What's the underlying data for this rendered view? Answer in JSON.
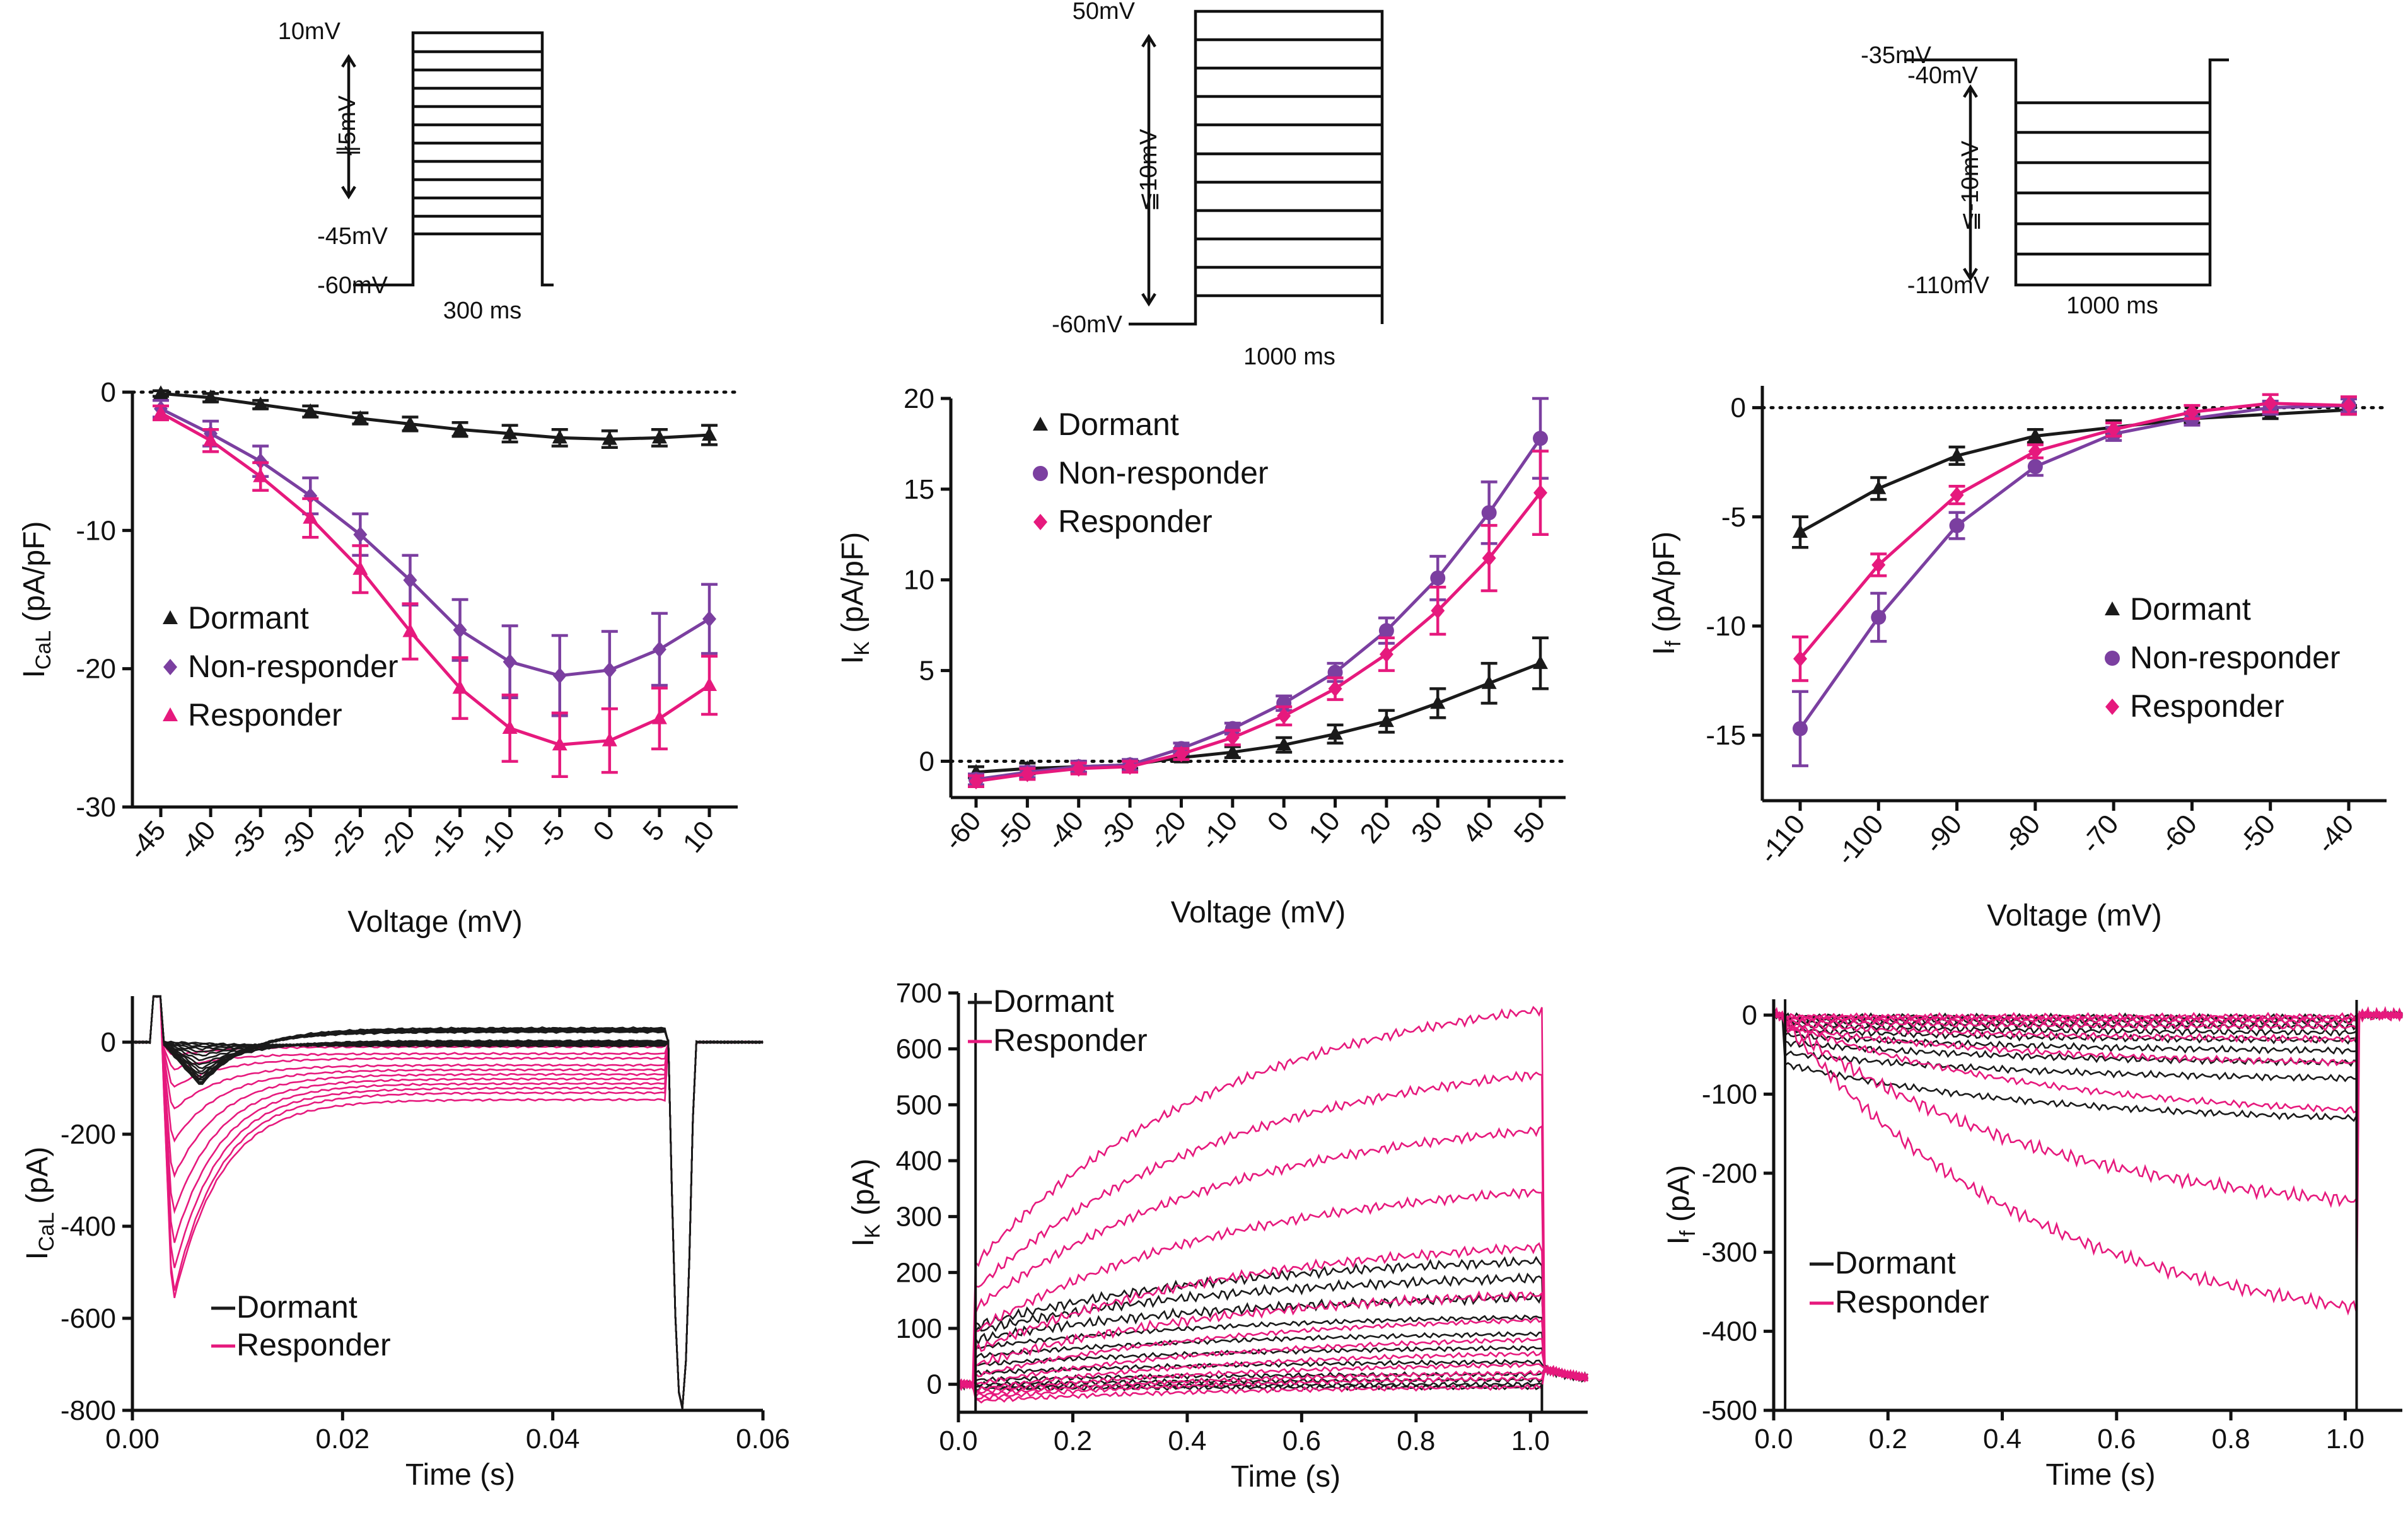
{
  "colors": {
    "dormant": "#1a1a1a",
    "nonresponder": "#7b3fa0",
    "responder": "#e6197d"
  },
  "protocols": [
    {
      "top_label": "10mV",
      "step_label": "∦5mV",
      "mid_label": "-45mV",
      "bottom_label": "-60mV",
      "duration_label": "300 ms"
    },
    {
      "top_label": "50mV",
      "step_label": "≦10mV",
      "bottom_label": "-60mV",
      "duration_label": "1000 ms"
    },
    {
      "hold_label": "-35mV",
      "top_label": "-40mV",
      "step_label": "≦-10mV",
      "bottom_label": "-110mV",
      "duration_label": "1000 ms"
    }
  ],
  "chart_data": [
    {
      "type": "line",
      "id": "iv_cal",
      "title": "",
      "xlabel": "Voltage (mV)",
      "ylabel_main": "I",
      "ylabel_sub": "CaL",
      "ylabel_unit": " (pA/pF)",
      "x": [
        -45,
        -40,
        -35,
        -30,
        -25,
        -20,
        -15,
        -10,
        -5,
        0,
        5,
        10
      ],
      "xticks": [
        "-45",
        "-40",
        "-35",
        "-30",
        "-25",
        "-20",
        "-15",
        "-10",
        "-5",
        "0",
        "5",
        "10"
      ],
      "ylim": [
        -30,
        0
      ],
      "yticks": [
        -30,
        -20,
        -10,
        0
      ],
      "ytick_labels": [
        "-30",
        "-20",
        "-10",
        "0"
      ],
      "legend": [
        "Dormant",
        "Non-responder",
        "Responder"
      ],
      "series": [
        {
          "name": "Dormant",
          "color": "#1a1a1a",
          "marker": "triangle",
          "values": [
            -0.1,
            -0.4,
            -0.9,
            -1.4,
            -1.9,
            -2.3,
            -2.7,
            -3.0,
            -3.3,
            -3.4,
            -3.3,
            -3.1
          ],
          "errors": [
            0.2,
            0.3,
            0.3,
            0.4,
            0.4,
            0.5,
            0.5,
            0.6,
            0.6,
            0.6,
            0.6,
            0.7
          ]
        },
        {
          "name": "Non-responder",
          "color": "#7b3fa0",
          "marker": "diamond",
          "values": [
            -1.2,
            -3.0,
            -5.0,
            -7.5,
            -10.3,
            -13.6,
            -17.2,
            -19.5,
            -20.5,
            -20.1,
            -18.6,
            -16.4
          ],
          "errors": [
            0.6,
            0.9,
            1.1,
            1.3,
            1.5,
            1.8,
            2.2,
            2.6,
            2.9,
            2.8,
            2.6,
            2.5
          ]
        },
        {
          "name": "Responder",
          "color": "#e6197d",
          "marker": "triangle",
          "values": [
            -1.5,
            -3.5,
            -6.1,
            -9.1,
            -12.8,
            -17.3,
            -21.4,
            -24.3,
            -25.5,
            -25.2,
            -23.6,
            -21.2
          ],
          "errors": [
            0.5,
            0.8,
            1.0,
            1.4,
            1.7,
            2.0,
            2.2,
            2.4,
            2.3,
            2.3,
            2.2,
            2.1
          ]
        }
      ]
    },
    {
      "type": "line",
      "id": "iv_ik",
      "title": "",
      "xlabel": "Voltage (mV)",
      "ylabel_main": "I",
      "ylabel_sub": "K",
      "ylabel_unit": " (pA/pF)",
      "x": [
        -60,
        -50,
        -40,
        -30,
        -20,
        -10,
        0,
        10,
        20,
        30,
        40,
        50
      ],
      "xticks": [
        "-60",
        "-50",
        "-40",
        "-30",
        "-20",
        "-10",
        "0",
        "10",
        "20",
        "30",
        "40",
        "50"
      ],
      "ylim": [
        -2,
        20
      ],
      "yticks": [
        0,
        5,
        10,
        15,
        20
      ],
      "ytick_labels": [
        "0",
        "5",
        "10",
        "15",
        "20"
      ],
      "legend": [
        "Dormant",
        "Non-responder",
        "Responder"
      ],
      "series": [
        {
          "name": "Dormant",
          "color": "#1a1a1a",
          "marker": "triangle",
          "values": [
            -0.6,
            -0.4,
            -0.3,
            -0.2,
            0.2,
            0.5,
            0.9,
            1.5,
            2.2,
            3.2,
            4.3,
            5.4
          ],
          "errors": [
            0.3,
            0.3,
            0.3,
            0.2,
            0.2,
            0.3,
            0.4,
            0.5,
            0.6,
            0.8,
            1.1,
            1.4
          ]
        },
        {
          "name": "Non-responder",
          "color": "#7b3fa0",
          "marker": "circle",
          "values": [
            -1.0,
            -0.6,
            -0.3,
            -0.2,
            0.7,
            1.8,
            3.2,
            4.9,
            7.2,
            10.1,
            13.7,
            17.8
          ],
          "errors": [
            0.3,
            0.3,
            0.3,
            0.3,
            0.3,
            0.3,
            0.4,
            0.5,
            0.7,
            1.2,
            1.7,
            2.2
          ]
        },
        {
          "name": "Responder",
          "color": "#e6197d",
          "marker": "diamond",
          "values": [
            -1.1,
            -0.7,
            -0.4,
            -0.3,
            0.4,
            1.3,
            2.5,
            4.0,
            5.9,
            8.3,
            11.2,
            14.8
          ],
          "errors": [
            0.3,
            0.3,
            0.3,
            0.3,
            0.3,
            0.4,
            0.5,
            0.6,
            0.9,
            1.3,
            1.8,
            2.3
          ]
        }
      ]
    },
    {
      "type": "line",
      "id": "iv_if",
      "title": "",
      "xlabel": "Voltage (mV)",
      "ylabel_main": "I",
      "ylabel_sub": "f",
      "ylabel_unit": " (pA/pF)",
      "x": [
        -110,
        -100,
        -90,
        -80,
        -70,
        -60,
        -50,
        -40
      ],
      "xticks": [
        "-110",
        "-100",
        "-90",
        "-80",
        "-70",
        "-60",
        "-50",
        "-40"
      ],
      "ylim": [
        -18,
        1
      ],
      "yticks": [
        -15,
        -10,
        -5,
        0
      ],
      "ytick_labels": [
        "-15",
        "-10",
        "-5",
        "0"
      ],
      "legend": [
        "Dormant",
        "Non-responder",
        "Responder"
      ],
      "series": [
        {
          "name": "Dormant",
          "color": "#1a1a1a",
          "marker": "triangle",
          "values": [
            -5.7,
            -3.7,
            -2.2,
            -1.3,
            -0.9,
            -0.5,
            -0.3,
            -0.1
          ],
          "errors": [
            0.7,
            0.5,
            0.4,
            0.3,
            0.3,
            0.2,
            0.2,
            0.2
          ]
        },
        {
          "name": "Non-responder",
          "color": "#7b3fa0",
          "marker": "circle",
          "values": [
            -14.7,
            -9.6,
            -5.4,
            -2.7,
            -1.2,
            -0.5,
            0.0,
            0.1
          ],
          "errors": [
            1.7,
            1.1,
            0.6,
            0.4,
            0.3,
            0.3,
            0.3,
            0.3
          ]
        },
        {
          "name": "Responder",
          "color": "#e6197d",
          "marker": "diamond",
          "values": [
            -11.5,
            -7.2,
            -4.0,
            -2.0,
            -1.0,
            -0.2,
            0.2,
            0.1
          ],
          "errors": [
            1.0,
            0.5,
            0.4,
            0.3,
            0.3,
            0.3,
            0.4,
            0.4
          ]
        }
      ]
    },
    {
      "type": "line",
      "id": "trace_cal",
      "title": "",
      "xlabel": "Time (s)",
      "ylabel_main": "I",
      "ylabel_sub": "CaL",
      "ylabel_unit": " (pA)",
      "xlim": [
        0,
        0.06
      ],
      "xticks": [
        0,
        0.02,
        0.04,
        0.06
      ],
      "xtick_labels": [
        "0.00",
        "0.02",
        "0.04",
        "0.06"
      ],
      "ylim": [
        -800,
        100
      ],
      "yticks": [
        -800,
        -600,
        -400,
        -200,
        0
      ],
      "ytick_labels": [
        "-800",
        "-600",
        "-400",
        "-200",
        "0"
      ],
      "legend": [
        "Dormant",
        "Responder"
      ],
      "step_end": 0.051,
      "dormant_peaks": [
        -2,
        -5,
        -10,
        -15,
        -22,
        -30,
        -40,
        -50,
        -58,
        -65,
        -72,
        -78,
        -82,
        -86,
        -89,
        -91,
        -93,
        -95
      ],
      "responder_peaks": [
        -30,
        -60,
        -100,
        -150,
        -220,
        -300,
        -380,
        -450,
        -510,
        -560,
        -575
      ],
      "responder_late": [
        -10,
        -25,
        -35,
        -50,
        -60,
        -70,
        -80,
        -90,
        -100,
        -110,
        -125
      ]
    },
    {
      "type": "line",
      "id": "trace_ik",
      "title": "",
      "xlabel": "Time (s)",
      "ylabel_main": "I",
      "ylabel_sub": "K",
      "ylabel_unit": " (pA)",
      "xlim": [
        0,
        1.1
      ],
      "xticks": [
        0,
        0.2,
        0.4,
        0.6,
        0.8,
        1.0
      ],
      "xtick_labels": [
        "0.0",
        "0.2",
        "0.4",
        "0.6",
        "0.8",
        "1.0"
      ],
      "ylim": [
        -50,
        700
      ],
      "yticks": [
        0,
        100,
        200,
        300,
        400,
        500,
        600,
        700
      ],
      "ytick_labels": [
        "0",
        "100",
        "200",
        "300",
        "400",
        "500",
        "600",
        "700"
      ],
      "legend": [
        "Dormant",
        "Responder"
      ],
      "step_start": 0.03,
      "step_end": 1.02,
      "dormant_traces": [
        [
          -8,
          -5
        ],
        [
          -5,
          0
        ],
        [
          0,
          8
        ],
        [
          8,
          18
        ],
        [
          20,
          40
        ],
        [
          35,
          65
        ],
        [
          50,
          90
        ],
        [
          65,
          120
        ],
        [
          80,
          155
        ],
        [
          95,
          190
        ],
        [
          105,
          220
        ]
      ],
      "responder_traces": [
        [
          -30,
          -5
        ],
        [
          -25,
          10
        ],
        [
          -20,
          20
        ],
        [
          -15,
          35
        ],
        [
          -10,
          55
        ],
        [
          0,
          80
        ],
        [
          15,
          115
        ],
        [
          35,
          160
        ],
        [
          60,
          245
        ],
        [
          95,
          345
        ],
        [
          135,
          455
        ],
        [
          170,
          555
        ],
        [
          215,
          670
        ]
      ]
    },
    {
      "type": "line",
      "id": "trace_if",
      "title": "",
      "xlabel": "Time (s)",
      "ylabel_main": "I",
      "ylabel_sub": "f",
      "ylabel_unit": " (pA)",
      "xlim": [
        0,
        1.1
      ],
      "xticks": [
        0,
        0.2,
        0.4,
        0.6,
        0.8,
        1.0
      ],
      "xtick_labels": [
        "0.0",
        "0.2",
        "0.4",
        "0.6",
        "0.8",
        "1.0"
      ],
      "ylim": [
        -500,
        20
      ],
      "yticks": [
        -500,
        -400,
        -300,
        -200,
        -100,
        0
      ],
      "ytick_labels": [
        "-500",
        "-400",
        "-300",
        "-200",
        "-100",
        "0"
      ],
      "legend": [
        "Dormant",
        "Responder"
      ],
      "step_start": 0.02,
      "step_end": 1.02,
      "dormant_traces": [
        [
          -2,
          -3
        ],
        [
          -5,
          -8
        ],
        [
          -8,
          -14
        ],
        [
          -12,
          -22
        ],
        [
          -18,
          -32
        ],
        [
          -25,
          -45
        ],
        [
          -35,
          -60
        ],
        [
          -48,
          -80
        ],
        [
          -62,
          -130
        ]
      ],
      "responder_traces": [
        [
          -2,
          -2
        ],
        [
          -3,
          -4
        ],
        [
          -4,
          -8
        ],
        [
          -8,
          -15
        ],
        [
          -12,
          -30
        ],
        [
          -15,
          -60
        ],
        [
          -10,
          -120
        ],
        [
          -10,
          -235
        ],
        [
          -10,
          -370
        ]
      ]
    }
  ]
}
